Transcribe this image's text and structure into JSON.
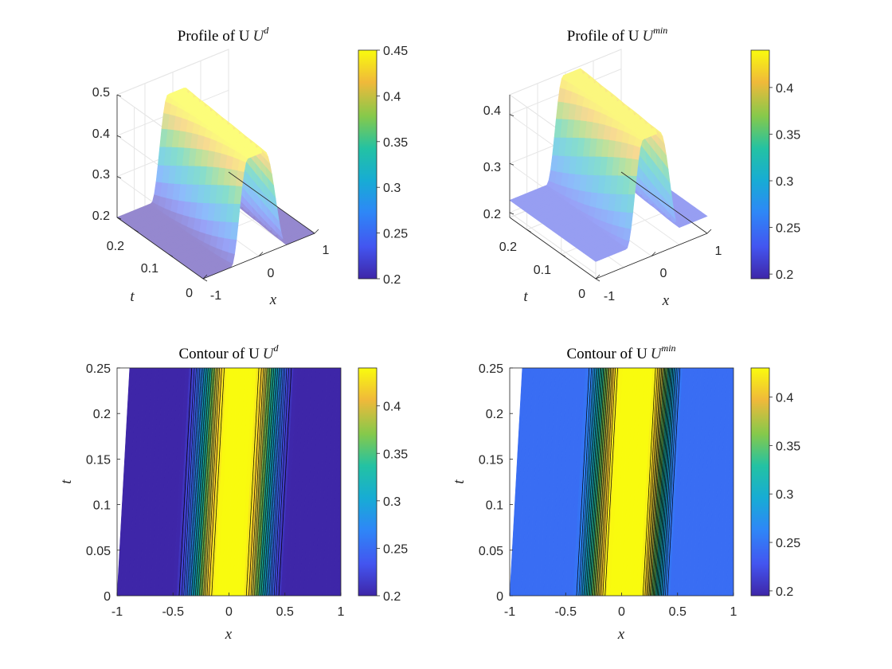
{
  "chart_data": [
    {
      "type": "surface",
      "title": "Profile of U",
      "title_superscript": "d",
      "xlabel": "x",
      "ylabel": "t",
      "zlabel": "",
      "xticks": [
        "-1",
        "0",
        "1"
      ],
      "yticks": [
        "0",
        "0.1",
        "0.2"
      ],
      "zticks": [
        "0.2",
        "0.3",
        "0.4",
        "0.5"
      ],
      "zlim": [
        0.2,
        0.5
      ],
      "xlim": [
        -1,
        1
      ],
      "ylim": [
        0,
        0.25
      ],
      "colorbar": {
        "ticks": [
          "0.2",
          "0.25",
          "0.3",
          "0.35",
          "0.4",
          "0.45"
        ],
        "range": [
          0.2,
          0.45
        ]
      },
      "profile": {
        "low": 0.2,
        "high": 0.45,
        "plateau": [
          -0.2,
          0.1
        ],
        "rise": [
          -0.5,
          -0.2
        ],
        "fall": [
          0.1,
          0.5
        ],
        "drift_per_t": 0.45,
        "base_offset": 0
      }
    },
    {
      "type": "surface",
      "title": "Profile of U",
      "title_superscript": "min",
      "xlabel": "x",
      "ylabel": "t",
      "zlabel": "",
      "xticks": [
        "-1",
        "0",
        "1"
      ],
      "yticks": [
        "0",
        "0.1",
        "0.2"
      ],
      "zticks": [
        "0.2",
        "0.3",
        "0.4"
      ],
      "zlim": [
        0.19,
        0.44
      ],
      "xlim": [
        -1,
        1
      ],
      "ylim": [
        0,
        0.25
      ],
      "colorbar": {
        "ticks": [
          "0.2",
          "0.25",
          "0.3",
          "0.35",
          "0.4"
        ],
        "range": [
          0.195,
          0.44
        ]
      },
      "profile": {
        "low": 0.225,
        "high": 0.435,
        "plateau": [
          -0.15,
          0.15
        ],
        "rise": [
          -0.45,
          -0.15
        ],
        "fall": [
          0.15,
          0.5
        ],
        "drift_per_t": 0.45,
        "base_offset": 0.01
      }
    },
    {
      "type": "contour",
      "title": "Contour of U",
      "title_superscript": "d",
      "xlabel": "x",
      "ylabel": "t",
      "xticks": [
        "-1",
        "-0.5",
        "0",
        "0.5",
        "1"
      ],
      "yticks": [
        "0",
        "0.05",
        "0.1",
        "0.15",
        "0.2",
        "0.25"
      ],
      "xlim": [
        -1,
        1
      ],
      "ylim": [
        0,
        0.25
      ],
      "colorbar": {
        "ticks": [
          "0.2",
          "0.25",
          "0.3",
          "0.35",
          "0.4"
        ],
        "range": [
          0.2,
          0.44
        ]
      },
      "profile": {
        "low": 0.2,
        "high": 0.44,
        "plateau": [
          -0.1,
          0.1
        ],
        "rise": [
          -0.5,
          -0.1
        ],
        "fall": [
          0.1,
          0.5
        ],
        "drift_per_t": 0.45,
        "base_offset": 0
      }
    },
    {
      "type": "contour",
      "title": "Contour of U",
      "title_superscript": "min",
      "xlabel": "x",
      "ylabel": "t",
      "xticks": [
        "-1",
        "-0.5",
        "0",
        "0.5",
        "1"
      ],
      "yticks": [
        "0",
        "0.05",
        "0.1",
        "0.15",
        "0.2",
        "0.25"
      ],
      "xlim": [
        -1,
        1
      ],
      "ylim": [
        0,
        0.25
      ],
      "colorbar": {
        "ticks": [
          "0.2",
          "0.25",
          "0.3",
          "0.35",
          "0.4"
        ],
        "range": [
          0.195,
          0.43
        ]
      },
      "profile": {
        "low": 0.245,
        "high": 0.43,
        "plateau": [
          -0.1,
          0.15
        ],
        "rise": [
          -0.45,
          -0.1
        ],
        "fall": [
          0.15,
          0.45
        ],
        "drift_per_t": 0.45,
        "base_offset": 0
      }
    }
  ]
}
